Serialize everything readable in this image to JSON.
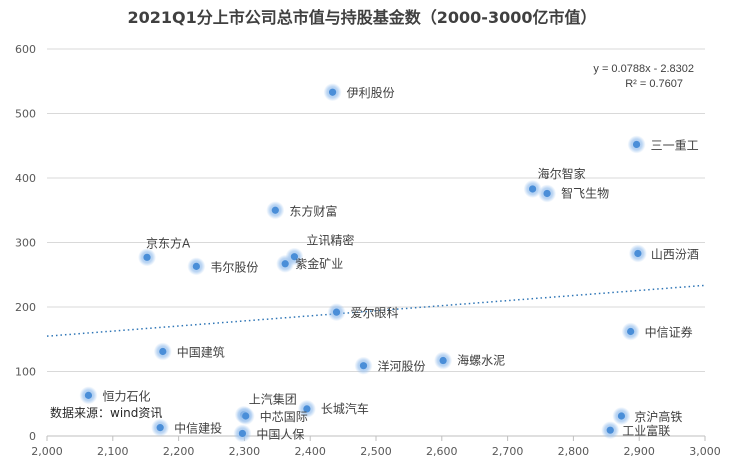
{
  "chart_data": {
    "type": "scatter",
    "title": "2021Q1分上市公司总市值与持股基金数（2000-3000亿市值）",
    "xlim": [
      2000,
      3000
    ],
    "ylim": [
      0,
      600
    ],
    "x_ticks": [
      2000,
      2100,
      2200,
      2300,
      2400,
      2500,
      2600,
      2700,
      2800,
      2900,
      3000
    ],
    "y_ticks": [
      0,
      100,
      200,
      300,
      400,
      500,
      600
    ],
    "grid": "horizontal",
    "points": [
      {
        "label": "伊利股份",
        "x": 2434,
        "y": 533
      },
      {
        "label": "三一重工",
        "x": 2896,
        "y": 452
      },
      {
        "label": "海尔智家",
        "x": 2738,
        "y": 383
      },
      {
        "label": "智飞生物",
        "x": 2760,
        "y": 376
      },
      {
        "label": "东方财富",
        "x": 2347,
        "y": 350
      },
      {
        "label": "山西汾酒",
        "x": 2898,
        "y": 283
      },
      {
        "label": "立讯精密",
        "x": 2376,
        "y": 278
      },
      {
        "label": "京东方A",
        "x": 2152,
        "y": 277
      },
      {
        "label": "紫金矿业",
        "x": 2362,
        "y": 267
      },
      {
        "label": "韦尔股份",
        "x": 2227,
        "y": 263
      },
      {
        "label": "爱尔眼科",
        "x": 2440,
        "y": 192
      },
      {
        "label": "中信证券",
        "x": 2887,
        "y": 162
      },
      {
        "label": "中国建筑",
        "x": 2176,
        "y": 131
      },
      {
        "label": "海螺水泥",
        "x": 2602,
        "y": 117
      },
      {
        "label": "洋河股份",
        "x": 2481,
        "y": 109
      },
      {
        "label": "恒力石化",
        "x": 2063,
        "y": 63
      },
      {
        "label": "长城汽车",
        "x": 2395,
        "y": 42
      },
      {
        "label": "上汽集团",
        "x": 2299,
        "y": 33
      },
      {
        "label": "中芯国际",
        "x": 2302,
        "y": 31
      },
      {
        "label": "京沪高铁",
        "x": 2873,
        "y": 31
      },
      {
        "label": "中信建投",
        "x": 2172,
        "y": 13
      },
      {
        "label": "工业富联",
        "x": 2856,
        "y": 9
      },
      {
        "label": "中国人保",
        "x": 2297,
        "y": 4
      }
    ],
    "trendline": {
      "type": "linear",
      "slope": 0.0788,
      "intercept": -2.8302
    },
    "equation": "y = 0.0788x - 2.8302",
    "r_squared": "R² = 0.7607",
    "source_note": "数据来源：wind资讯",
    "marker_color": "#4a8ed8",
    "glow_color": "#9dc3ee",
    "trend_color": "#2e75b6"
  }
}
